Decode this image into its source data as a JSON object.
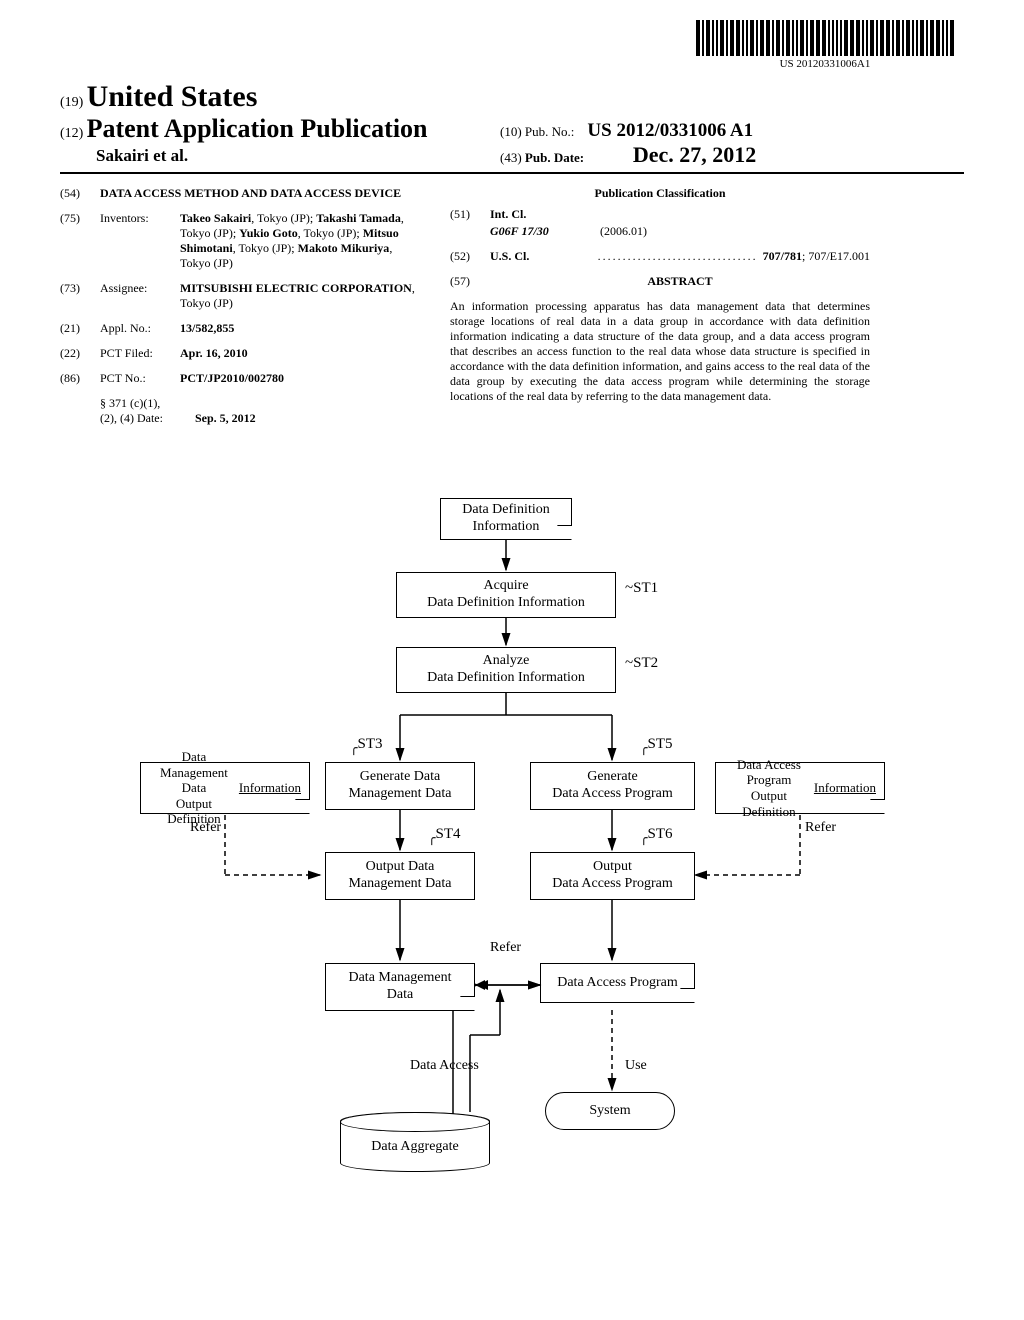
{
  "barcode_text": "US 20120331006A1",
  "header": {
    "code19": "(19)",
    "us": "United States",
    "code12": "(12)",
    "pub_app": "Patent Application Publication",
    "inventor": "Sakairi et al.",
    "code10": "(10)",
    "pub_no_label": "Pub. No.:",
    "pub_no": "US 2012/0331006 A1",
    "code43": "(43)",
    "pub_date_label": "Pub. Date:",
    "pub_date": "Dec. 27, 2012"
  },
  "biblio": {
    "title_code": "(54)",
    "title": "DATA ACCESS METHOD AND DATA ACCESS DEVICE",
    "inventors_code": "(75)",
    "inventors_label": "Inventors:",
    "inventors": "Takeo Sakairi, Tokyo (JP); Takashi Tamada, Tokyo (JP); Yukio Goto, Tokyo (JP); Mitsuo Shimotani, Tokyo (JP); Makoto Mikuriya, Tokyo (JP)",
    "assignee_code": "(73)",
    "assignee_label": "Assignee:",
    "assignee": "MITSUBISHI ELECTRIC CORPORATION, Tokyo (JP)",
    "applno_code": "(21)",
    "applno_label": "Appl. No.:",
    "applno": "13/582,855",
    "pctfiled_code": "(22)",
    "pctfiled_label": "PCT Filed:",
    "pctfiled": "Apr. 16, 2010",
    "pctno_code": "(86)",
    "pctno_label": "PCT No.:",
    "pctno": "PCT/JP2010/002780",
    "s371_label": "§ 371 (c)(1),",
    "s371_sub": "(2), (4) Date:",
    "s371_date": "Sep. 5, 2012",
    "class_heading": "Publication Classification",
    "intcl_code": "(51)",
    "intcl_label": "Int. Cl.",
    "intcl_class": "G06F 17/30",
    "intcl_date": "(2006.01)",
    "uscl_code": "(52)",
    "uscl_label": "U.S. Cl.",
    "uscl_dots": " ................................ ",
    "uscl_val": "707/781; 707/E17.001",
    "abstract_code": "(57)",
    "abstract_label": "ABSTRACT",
    "abstract": "An information processing apparatus has data management data that determines storage locations of real data in a data group in accordance with data definition information indicating a data structure of the data group, and a data access program that describes an access function to the real data whose data structure is specified in accordance with the data definition information, and gains access to the real data of the data group by executing the data access program while determining the storage locations of the real data by referring to the data management data."
  },
  "flowchart": {
    "nodes": {
      "def_info": "Data Definition\nInformation",
      "acquire": "Acquire\nData Definition Information",
      "analyze": "Analyze\nData Definition Information",
      "mgmt_odi": "Data Management Data\nOutput Definition\nInformation",
      "gen_mgmt": "Generate Data\nManagement Data",
      "gen_prog": "Generate\nData Access Program",
      "prog_odi": "Data Access Program\nOutput Definition\nInformation",
      "out_mgmt": "Output Data\nManagement Data",
      "out_prog": "Output\nData Access Program",
      "mgmt_data": "Data Management\nData",
      "prog": "Data Access Program",
      "system": "System",
      "aggregate": "Data Aggregate"
    },
    "st_labels": {
      "st1": "ST1",
      "st2": "ST2",
      "st3": "ST3",
      "st4": "ST4",
      "st5": "ST5",
      "st6": "ST6"
    },
    "edge_labels": {
      "refer_left": "Refer",
      "refer_right": "Refer",
      "refer_mid": "Refer",
      "data_access": "Data Access",
      "use": "Use"
    }
  }
}
